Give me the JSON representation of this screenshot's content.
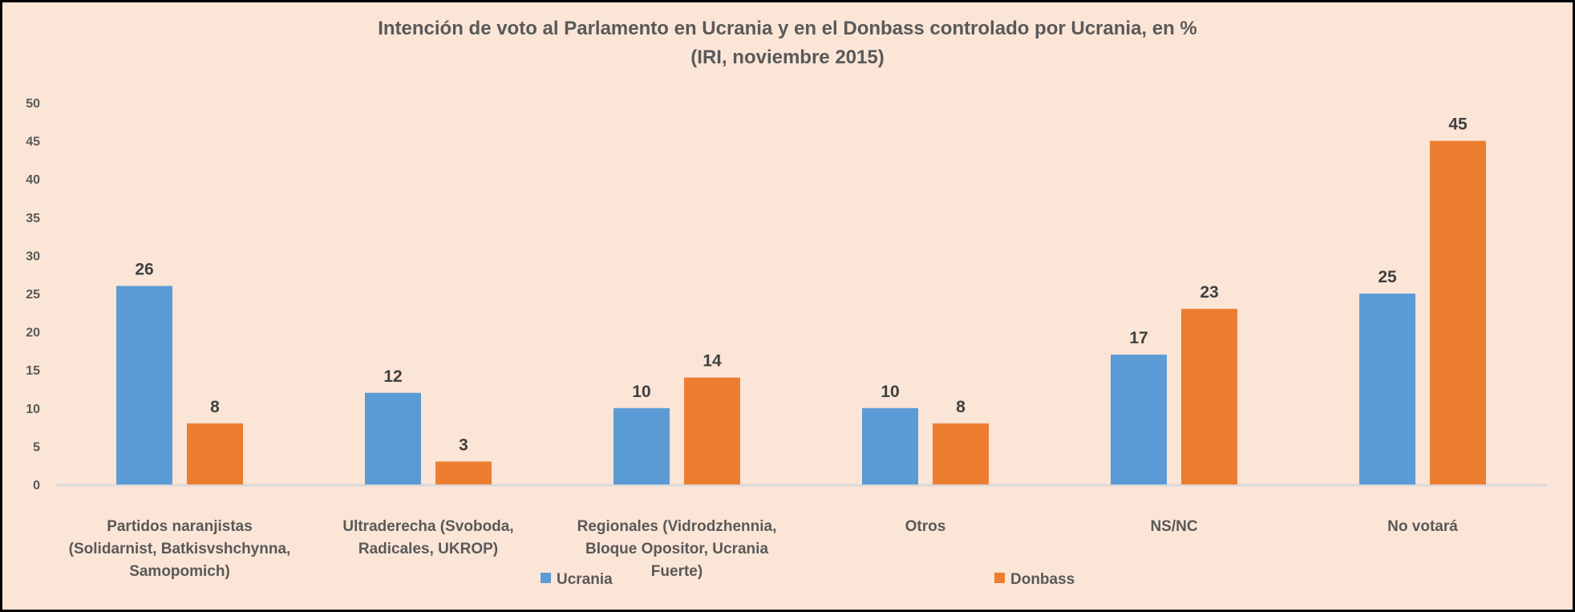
{
  "chart_data": {
    "type": "bar",
    "title": "Intención de voto al Parlamento en Ucrania y en el Donbass controlado por Ucrania,  en %",
    "subtitle": "(IRI, noviembre 2015)",
    "xlabel": "",
    "ylabel": "",
    "ylim": [
      0,
      50
    ],
    "yticks": [
      0,
      5,
      10,
      15,
      20,
      25,
      30,
      35,
      40,
      45,
      50
    ],
    "grid": false,
    "legend_position": "bottom",
    "categories": [
      [
        "Partidos naranjistas",
        "(Solidarnist, Batkisvshchynna,",
        "Samopomich)"
      ],
      [
        "Ultraderecha (Svoboda,",
        "Radicales, UKROP)"
      ],
      [
        "Regionales (Vidrodzhennia,",
        "Bloque Opositor, Ucrania",
        "Fuerte)"
      ],
      [
        "Otros"
      ],
      [
        "NS/NC"
      ],
      [
        "No votará"
      ]
    ],
    "series": [
      {
        "name": "Ucrania",
        "color": "#5B9BD5",
        "values": [
          26,
          12,
          10,
          10,
          17,
          25
        ]
      },
      {
        "name": "Donbass",
        "color": "#ED7D31",
        "values": [
          8,
          3,
          14,
          8,
          23,
          45
        ]
      }
    ]
  }
}
